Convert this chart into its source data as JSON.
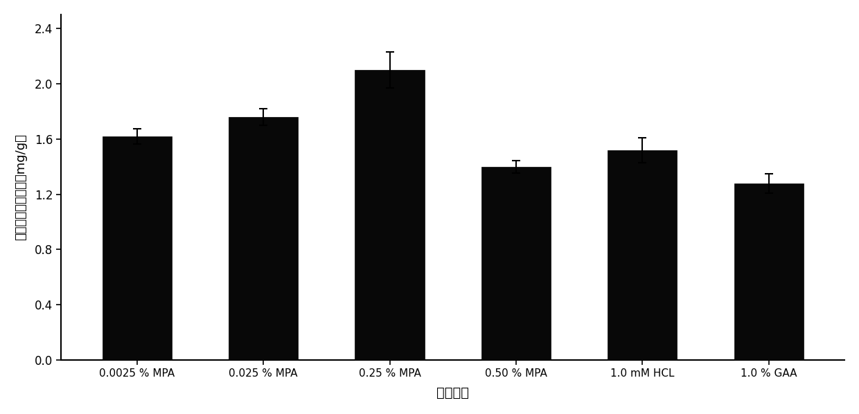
{
  "categories": [
    "0.0025 % MPA",
    "0.025 % MPA",
    "0.25 % MPA",
    "0.50 % MPA",
    "1.0 mM HCL",
    "1.0 % GAA"
  ],
  "values": [
    1.62,
    1.76,
    2.1,
    1.4,
    1.52,
    1.28
  ],
  "errors": [
    0.055,
    0.06,
    0.13,
    0.045,
    0.09,
    0.07
  ],
  "bar_color": "#080808",
  "bar_width": 0.55,
  "bar_edge_color": "#000000",
  "ylabel": "抗崩血酸的提取率（mg/g）",
  "xlabel": "提取溶剂",
  "ylim": [
    0,
    2.5
  ],
  "yticks": [
    0.0,
    0.4,
    0.8,
    1.2,
    1.6,
    2.0,
    2.4
  ],
  "background_color": "#ffffff",
  "ylabel_fontsize": 13,
  "xlabel_fontsize": 14,
  "tick_fontsize": 12,
  "xtick_fontsize": 11,
  "error_capsize": 4,
  "error_linewidth": 1.5,
  "error_color": "#000000",
  "spine_linewidth": 1.5
}
